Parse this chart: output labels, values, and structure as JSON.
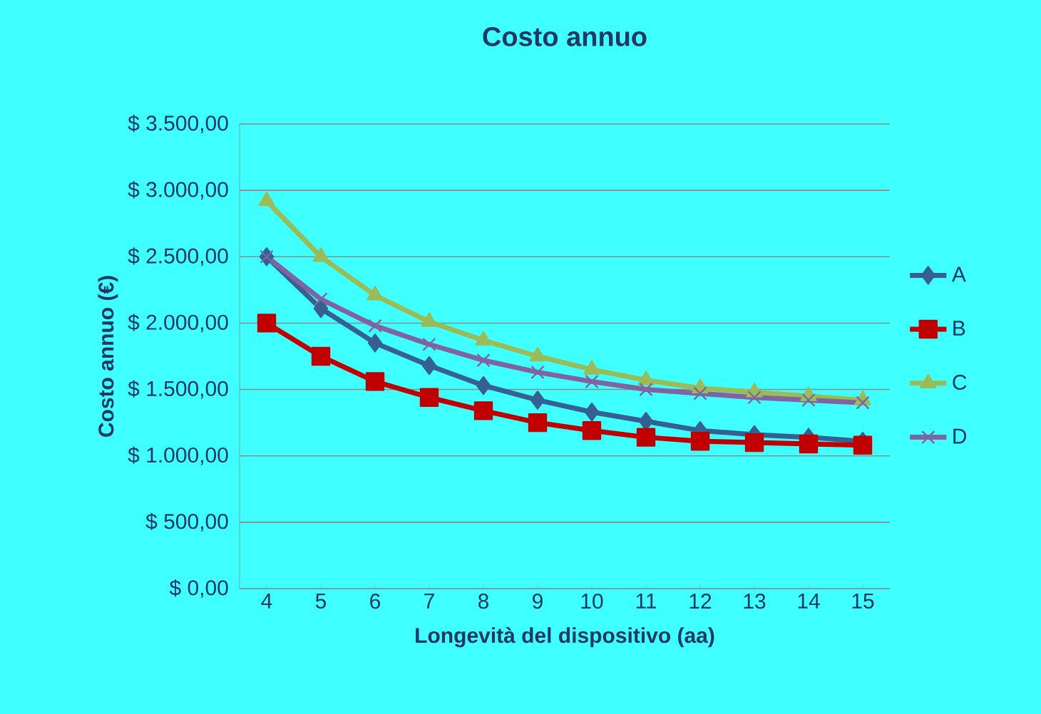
{
  "chart_data": {
    "type": "line",
    "title": "Costo annuo",
    "xlabel": "Longevità del dispositivo (aa)",
    "ylabel": "Costo annuo (€)",
    "categories": [
      "4",
      "5",
      "6",
      "7",
      "8",
      "9",
      "10",
      "11",
      "12",
      "13",
      "14",
      "15"
    ],
    "series": [
      {
        "name": "A",
        "color": "#376092",
        "marker": "diamond",
        "values": [
          2500,
          2110,
          1850,
          1680,
          1530,
          1420,
          1330,
          1260,
          1190,
          1160,
          1140,
          1110
        ]
      },
      {
        "name": "B",
        "color": "#c00000",
        "marker": "square",
        "values": [
          2000,
          1750,
          1560,
          1440,
          1340,
          1250,
          1190,
          1140,
          1110,
          1100,
          1090,
          1080
        ]
      },
      {
        "name": "C",
        "color": "#9bbb59",
        "marker": "triangle",
        "values": [
          2920,
          2500,
          2210,
          2010,
          1870,
          1750,
          1650,
          1570,
          1510,
          1480,
          1450,
          1420
        ]
      },
      {
        "name": "D",
        "color": "#8064a2",
        "marker": "cross",
        "values": [
          2500,
          2180,
          1980,
          1840,
          1720,
          1630,
          1560,
          1500,
          1470,
          1440,
          1420,
          1400
        ]
      }
    ],
    "ylim": [
      0,
      3500
    ],
    "yticks": [
      {
        "value": 0,
        "label": "$ 0,00"
      },
      {
        "value": 500,
        "label": "$ 500,00"
      },
      {
        "value": 1000,
        "label": "$ 1.000,00"
      },
      {
        "value": 1500,
        "label": "$ 1.500,00"
      },
      {
        "value": 2000,
        "label": "$ 2.000,00"
      },
      {
        "value": 2500,
        "label": "$ 2.500,00"
      },
      {
        "value": 3000,
        "label": "$ 3.000,00"
      },
      {
        "value": 3500,
        "label": "$ 3.500,00"
      }
    ],
    "grid": "y",
    "legend": "right"
  }
}
